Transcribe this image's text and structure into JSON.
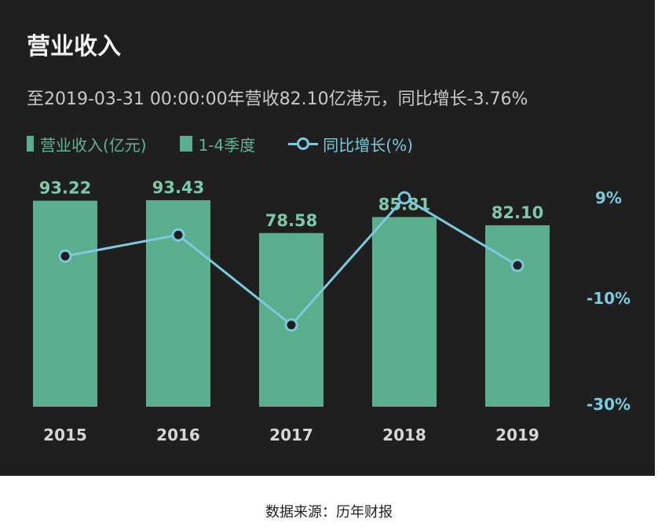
{
  "header": {
    "title": "营业收入",
    "subtitle": "至2019-03-31 00:00:00年营收82.10亿港元，同比增长-3.76%"
  },
  "legend": {
    "revenue_label": "营业收入(亿元)",
    "quarter_label": "1-4季度",
    "growth_label": "同比增长(%)"
  },
  "colors": {
    "background": "#1f1f1f",
    "bar": "#5aae8e",
    "line": "#7dc9de",
    "bar_label": "#7dc9a8"
  },
  "chart_data": {
    "type": "bar",
    "categories": [
      "2015",
      "2016",
      "2017",
      "2018",
      "2019"
    ],
    "series": [
      {
        "name": "营业收入(亿元)",
        "type": "bar",
        "values": [
          93.22,
          93.43,
          78.58,
          85.81,
          82.1
        ],
        "labels": [
          "93.22",
          "93.43",
          "78.58",
          "85.81",
          "82.10"
        ]
      },
      {
        "name": "同比增长(%)",
        "type": "line",
        "values": [
          -2,
          2,
          -15,
          9,
          -3.76
        ]
      }
    ],
    "y_right": {
      "ticks": [
        "9%",
        "-10%",
        "-30%"
      ],
      "values": [
        9,
        -10,
        -30
      ]
    },
    "ylim_bar": [
      0,
      100
    ]
  },
  "footer": {
    "source": "数据来源：历年财报"
  }
}
